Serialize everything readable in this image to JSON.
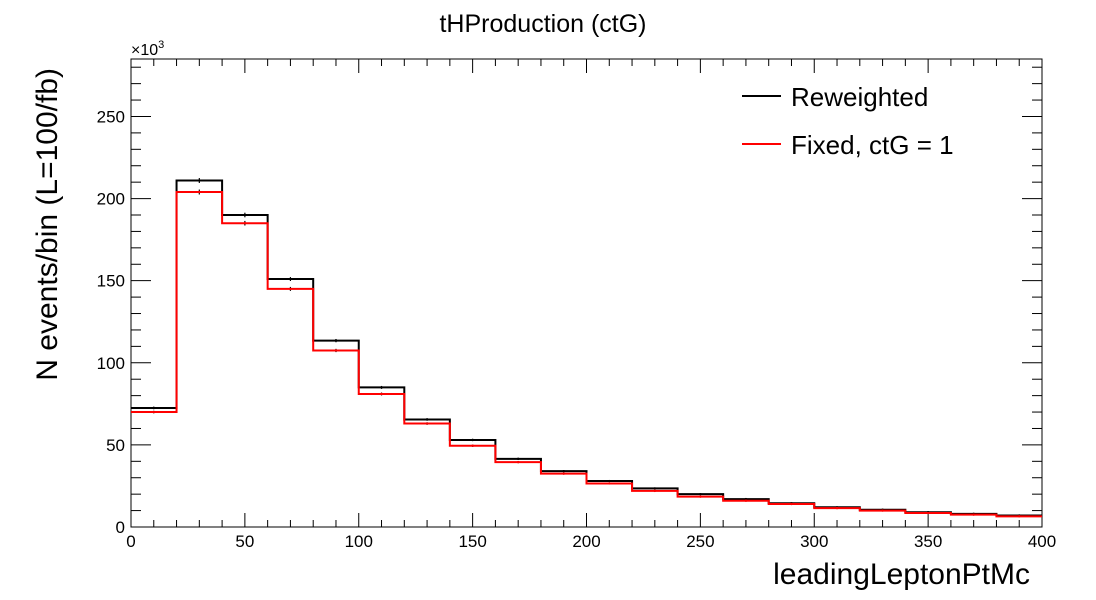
{
  "chart_data": {
    "type": "histogram",
    "title": "tHProduction (ctG)",
    "xlabel": "leadingLeptonPtMc",
    "ylabel": "N events/bin (L=100/fb)",
    "y_multiplier_label": "×10",
    "y_multiplier_exponent": "3",
    "xlim": [
      0,
      400
    ],
    "ylim": [
      0,
      285
    ],
    "x_ticks": [
      0,
      50,
      100,
      150,
      200,
      250,
      300,
      350,
      400
    ],
    "y_ticks": [
      0,
      50,
      100,
      150,
      200,
      250
    ],
    "bin_edges": [
      0,
      20,
      40,
      60,
      80,
      100,
      120,
      140,
      160,
      180,
      200,
      220,
      240,
      260,
      280,
      300,
      320,
      340,
      360,
      380,
      400
    ],
    "series": [
      {
        "name": "Reweighted",
        "color": "#000000",
        "values": [
          72.5,
          211,
          190,
          151,
          113.5,
          85,
          65.5,
          53,
          41.5,
          34,
          28,
          23.5,
          20,
          17,
          14.5,
          12,
          10.5,
          9,
          8,
          7
        ],
        "errors": [
          0.8,
          1.5,
          1.4,
          1.2,
          1.0,
          0.9,
          0.8,
          0.7,
          0.6,
          0.6,
          0.5,
          0.5,
          0.4,
          0.4,
          0.4,
          0.3,
          0.3,
          0.3,
          0.3,
          0.3
        ]
      },
      {
        "name": "Fixed, ctG = 1",
        "color": "#ff0000",
        "values": [
          70,
          204,
          185,
          145,
          107.5,
          81,
          63,
          49.5,
          39.5,
          32.5,
          26.5,
          22,
          18.5,
          16,
          14,
          11.5,
          10,
          8.5,
          7.5,
          6.5
        ],
        "errors": [
          0.8,
          1.5,
          1.4,
          1.2,
          1.0,
          0.9,
          0.8,
          0.7,
          0.6,
          0.6,
          0.5,
          0.5,
          0.4,
          0.4,
          0.4,
          0.3,
          0.3,
          0.3,
          0.3,
          0.3
        ]
      }
    ],
    "legend_position": "top-right",
    "grid": false
  }
}
